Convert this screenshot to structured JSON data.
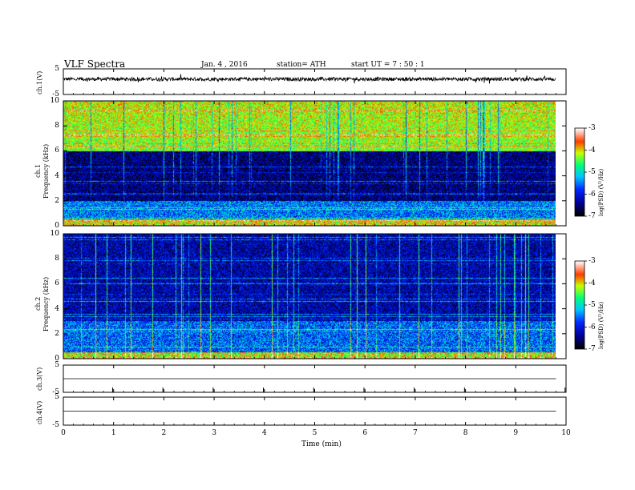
{
  "header": {
    "title": "VLF  Spectra",
    "date": "Jan. 4  , 2016",
    "station": "station= ATH",
    "start": "start  UT  =   7 : 50 : 1"
  },
  "colors": {
    "background": "#ffffff",
    "trace": "#000000",
    "colormap": [
      "#000000",
      "#0000ff",
      "#00c8ff",
      "#00ff80",
      "#ffff00",
      "#ff0000",
      "#ffffff"
    ]
  },
  "chart_data": [
    {
      "type": "line",
      "name": "ch1-waveform",
      "ylabel": "ch.1(V)",
      "ylim": [
        -5,
        5
      ],
      "yticks": [
        "5",
        "-5"
      ],
      "x_range_min": [
        0,
        10
      ],
      "data_extent_min": [
        0,
        9.8
      ],
      "baseline_v": 1.0,
      "noise_amplitude_v": 0.7
    },
    {
      "type": "heatmap",
      "name": "ch1-spectrogram",
      "ylabel": "Frequency  (kHz)",
      "channel_label": "ch.1",
      "ylim": [
        0,
        10
      ],
      "yticks": [
        "0",
        "2",
        "4",
        "6",
        "8",
        "10"
      ],
      "colorbar": {
        "label": "log(PSD) (V²/Hz)",
        "range": [
          -7,
          -3
        ],
        "ticks": [
          "-3",
          "-4",
          "-5",
          "-6",
          "-7"
        ]
      },
      "description_levels": {
        "below_2khz": -5.5,
        "2_to_6khz": -6.5,
        "above_6khz": -4.3
      }
    },
    {
      "type": "heatmap",
      "name": "ch2-spectrogram",
      "ylabel": "Frequency  (kHz)",
      "channel_label": "ch.2",
      "ylim": [
        0,
        10
      ],
      "yticks": [
        "0",
        "2",
        "4",
        "6",
        "8",
        "10"
      ],
      "colorbar": {
        "label": "log(PSD) (V²/Hz)",
        "range": [
          -7,
          -3
        ],
        "ticks": [
          "-3",
          "-4",
          "-5",
          "-6",
          "-7"
        ]
      },
      "description_levels": {
        "below_3khz": -5.6,
        "3_to_10khz": -6.3
      }
    },
    {
      "type": "line",
      "name": "ch3-waveform",
      "ylabel": "ch.3(V)",
      "ylim": [
        -5,
        5
      ],
      "yticks": [
        "5",
        "-5"
      ],
      "constant_value_v": 0
    },
    {
      "type": "line",
      "name": "ch4-waveform",
      "ylabel": "ch.4(V)",
      "ylim": [
        -5,
        5
      ],
      "yticks": [
        "5",
        "-5"
      ],
      "constant_value_v": 0
    }
  ],
  "xaxis": {
    "label": "Time  (min)",
    "ticks": [
      "0",
      "1",
      "2",
      "3",
      "4",
      "5",
      "6",
      "7",
      "8",
      "9",
      "10"
    ]
  }
}
